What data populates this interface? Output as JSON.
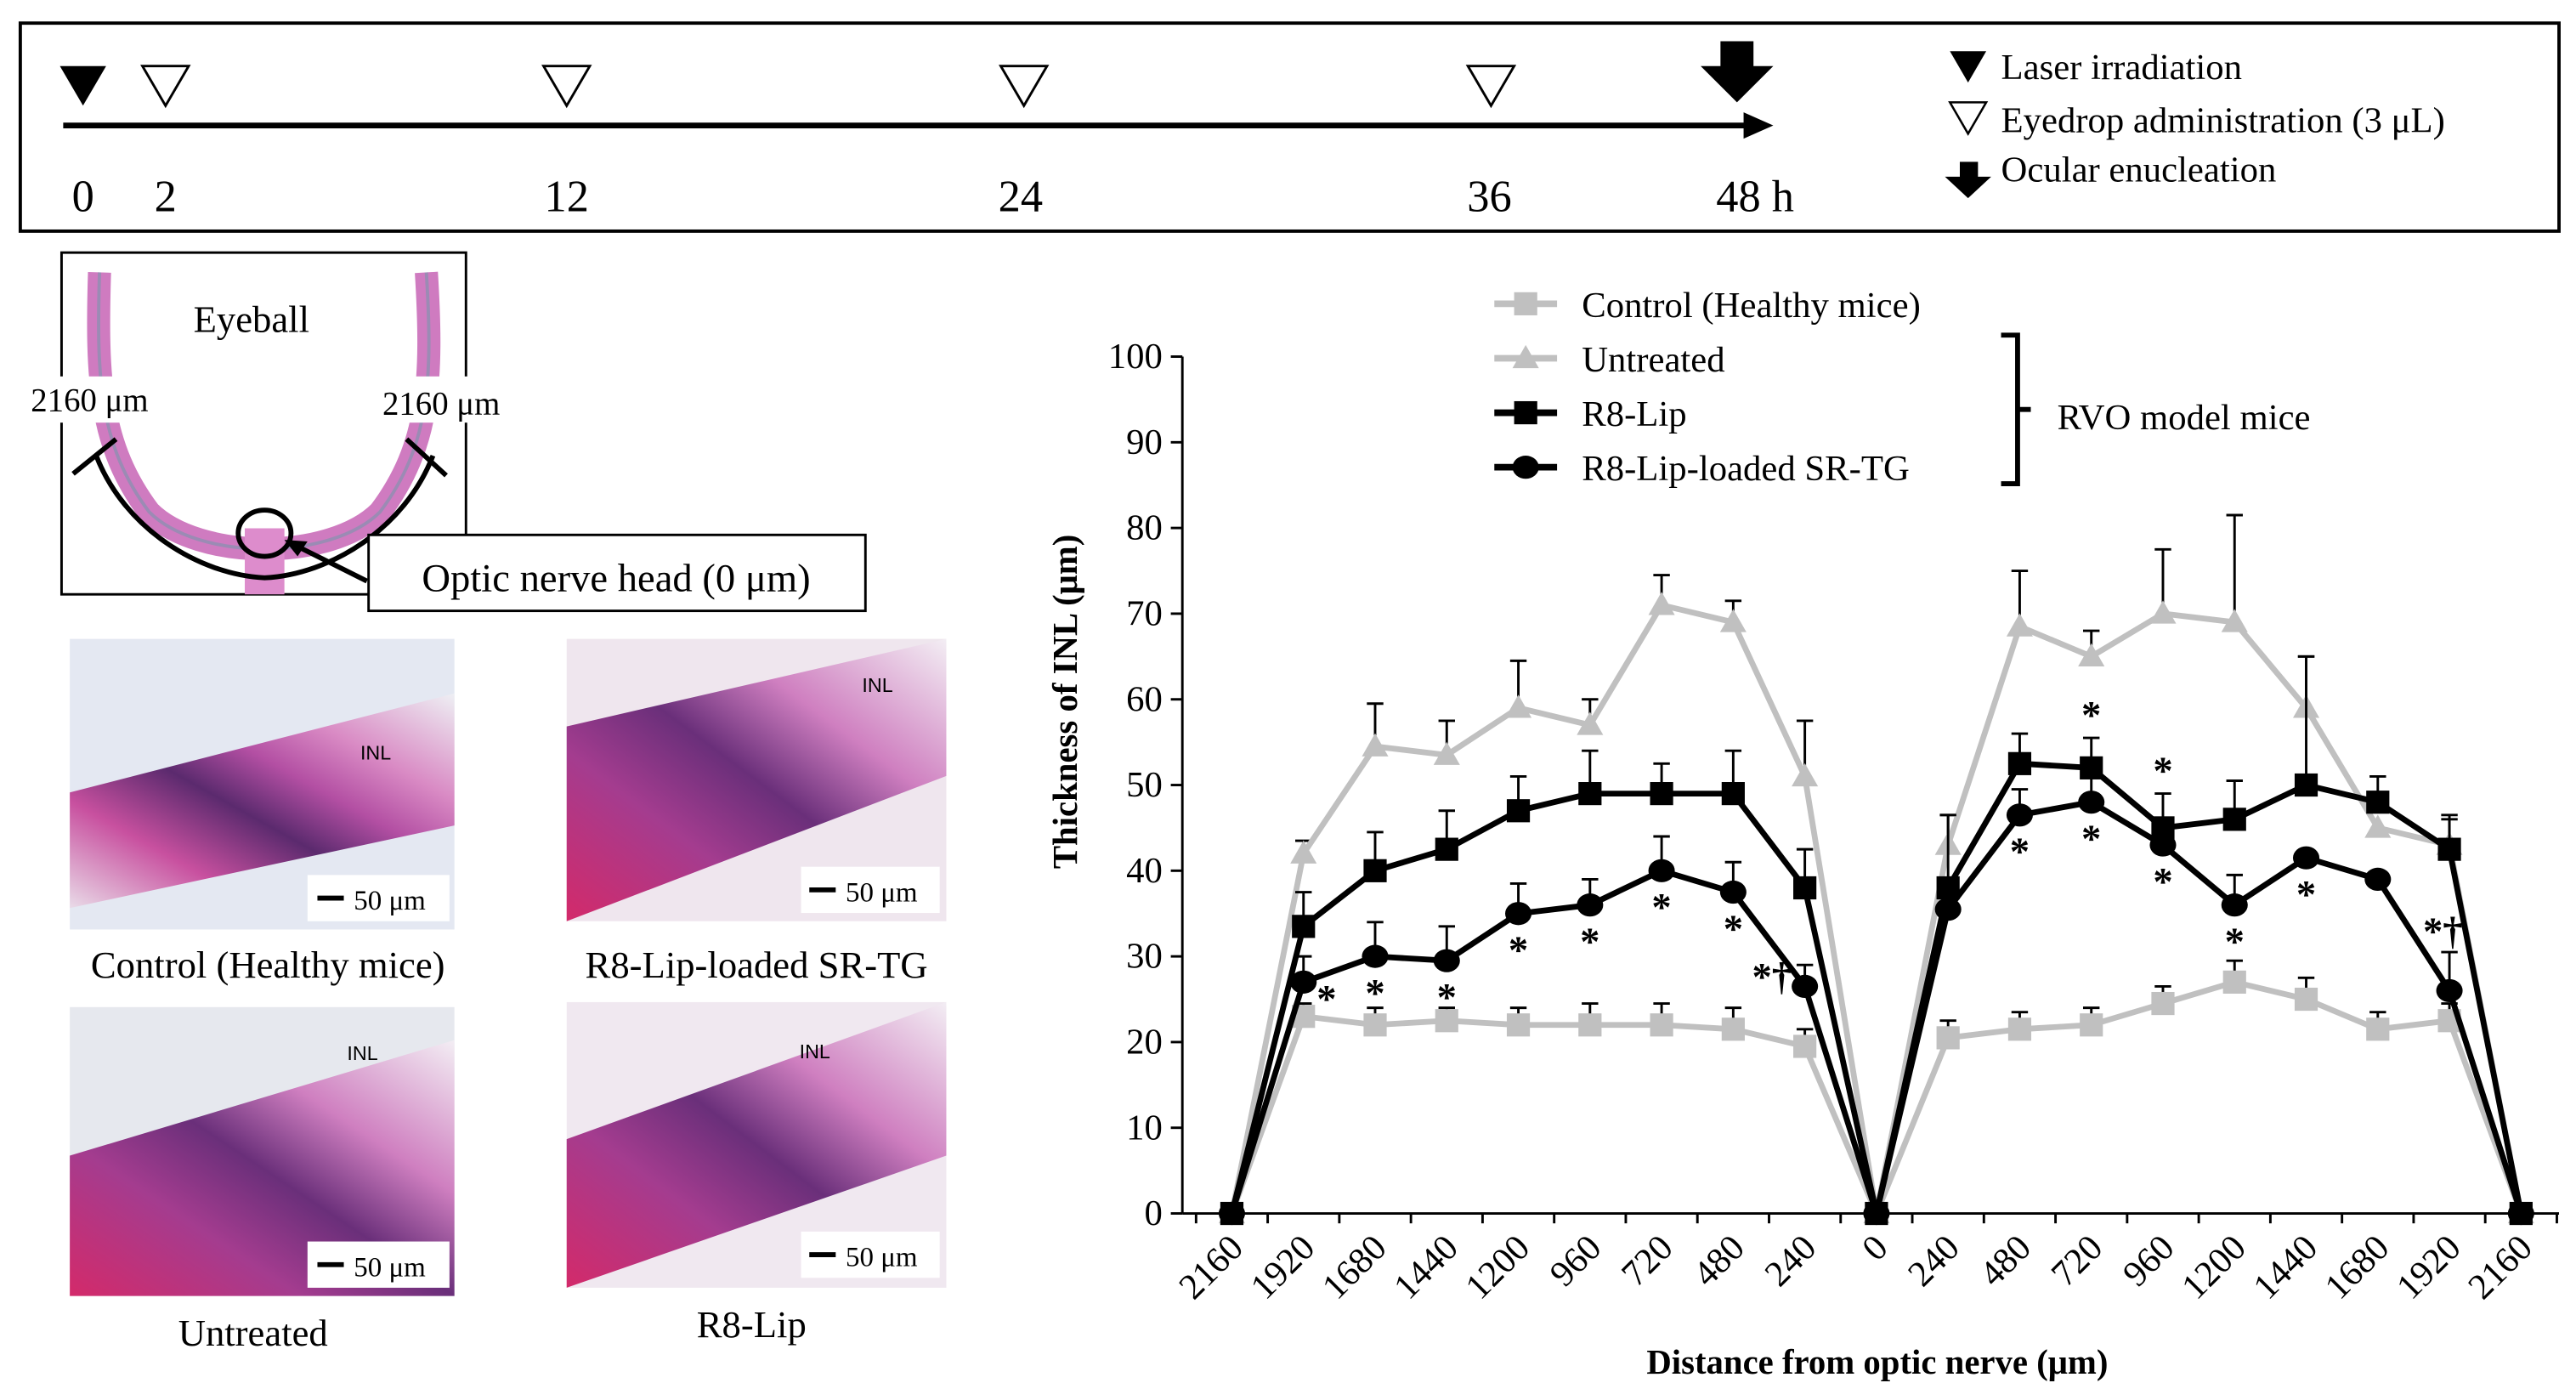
{
  "timeline": {
    "ticks": [
      "0",
      "2",
      "12",
      "24",
      "36",
      "48 h"
    ],
    "legend": {
      "laser": "Laser irradiation",
      "eyedrop": "Eyedrop administration (3 μL)",
      "enucleation": "Ocular enucleation"
    }
  },
  "eyeball": {
    "title": "Eyeball",
    "left_label": "2160 μm",
    "right_label": "2160 μm",
    "callout": "Optic nerve head (0 μm)"
  },
  "micrographs": [
    {
      "caption": "Control (Healthy mice)",
      "scale": "50 μm",
      "layer": "INL"
    },
    {
      "caption": "R8-Lip-loaded SR-TG",
      "scale": "50 μm",
      "layer": "INL"
    },
    {
      "caption": "Untreated",
      "scale": "50 μm",
      "layer": "INL"
    },
    {
      "caption": "R8-Lip",
      "scale": "50 μm",
      "layer": "INL"
    }
  ],
  "chart_data": {
    "type": "line",
    "xlabel": "Distance from optic nerve (μm)",
    "ylabel": "Thickness of INL (μm)",
    "ylim": [
      0,
      100
    ],
    "yticks": [
      "0",
      "10",
      "20",
      "30",
      "40",
      "50",
      "60",
      "70",
      "80",
      "90",
      "100"
    ],
    "categories": [
      "2160",
      "1920",
      "1680",
      "1440",
      "1200",
      "960",
      "720",
      "480",
      "240",
      "0",
      "240",
      "480",
      "720",
      "960",
      "1200",
      "1440",
      "1680",
      "1920",
      "2160"
    ],
    "group_label": "RVO model mice",
    "series": [
      {
        "name": "Control (Healthy mice)",
        "color": "#c0c0c0",
        "marker": "square",
        "values": [
          0,
          23,
          22,
          22.5,
          22,
          22,
          22,
          21.5,
          19.5,
          0,
          20.5,
          21.5,
          22,
          24.5,
          27,
          25,
          21.5,
          22.5,
          0
        ],
        "error": [
          0,
          1.5,
          2,
          1.5,
          2,
          2.5,
          2.5,
          2.5,
          2,
          0,
          2,
          2,
          2,
          2,
          2.5,
          2.5,
          2,
          2,
          0
        ]
      },
      {
        "name": "Untreated",
        "color": "#c0c0c0",
        "marker": "triangle",
        "values": [
          0,
          42,
          54.5,
          53.5,
          59,
          57,
          71,
          69,
          51,
          0,
          43,
          68.5,
          65,
          70,
          69,
          59,
          45,
          43,
          0
        ],
        "error": [
          0,
          1.5,
          5,
          4,
          5.5,
          3,
          3.5,
          2.5,
          6.5,
          0,
          3.5,
          6.5,
          3,
          7.5,
          12.5,
          6,
          0,
          3,
          0
        ]
      },
      {
        "name": "R8-Lip",
        "color": "#000000",
        "marker": "square",
        "values": [
          0,
          33.5,
          40,
          42.5,
          47,
          49,
          49,
          49,
          38,
          0,
          38,
          52.5,
          52,
          45,
          46,
          50,
          48,
          42.5,
          0
        ],
        "error": [
          0,
          4,
          4.5,
          4.5,
          4,
          5,
          3.5,
          5,
          4.5,
          0,
          8.5,
          3.5,
          3.5,
          4,
          4.5,
          15,
          3,
          4,
          0
        ]
      },
      {
        "name": "R8-Lip-loaded SR-TG",
        "color": "#000000",
        "marker": "circle",
        "values": [
          0,
          27,
          30,
          29.5,
          35,
          36,
          40,
          37.5,
          26.5,
          0,
          35.5,
          46.5,
          48,
          43,
          36,
          41.5,
          39,
          26,
          0
        ],
        "error": [
          0,
          3,
          4,
          4,
          3.5,
          3,
          4,
          3.5,
          2.5,
          0,
          0,
          3,
          3,
          0,
          3.5,
          0,
          0,
          4.5,
          0
        ]
      }
    ],
    "annotations": [
      {
        "series": 3,
        "index": 1,
        "text": "*",
        "pos": "right"
      },
      {
        "series": 3,
        "index": 2,
        "text": "*",
        "pos": "below"
      },
      {
        "series": 3,
        "index": 3,
        "text": "*",
        "pos": "below"
      },
      {
        "series": 3,
        "index": 4,
        "text": "*",
        "pos": "below"
      },
      {
        "series": 3,
        "index": 5,
        "text": "*",
        "pos": "below"
      },
      {
        "series": 3,
        "index": 6,
        "text": "*",
        "pos": "below"
      },
      {
        "series": 3,
        "index": 7,
        "text": "*",
        "pos": "below"
      },
      {
        "series": 3,
        "index": 8,
        "text": "*†",
        "pos": "left"
      },
      {
        "series": 3,
        "index": 11,
        "text": "*",
        "pos": "below"
      },
      {
        "series": 3,
        "index": 12,
        "text": "*",
        "pos": "below"
      },
      {
        "series": 3,
        "index": 13,
        "text": "*",
        "pos": "below"
      },
      {
        "series": 3,
        "index": 14,
        "text": "*",
        "pos": "below"
      },
      {
        "series": 3,
        "index": 15,
        "text": "*",
        "pos": "below"
      },
      {
        "series": 3,
        "index": 17,
        "text": "*†",
        "pos": "upleft"
      },
      {
        "series": 2,
        "index": 12,
        "text": "*",
        "pos": "above"
      },
      {
        "series": 2,
        "index": 13,
        "text": "*",
        "pos": "above"
      }
    ]
  }
}
